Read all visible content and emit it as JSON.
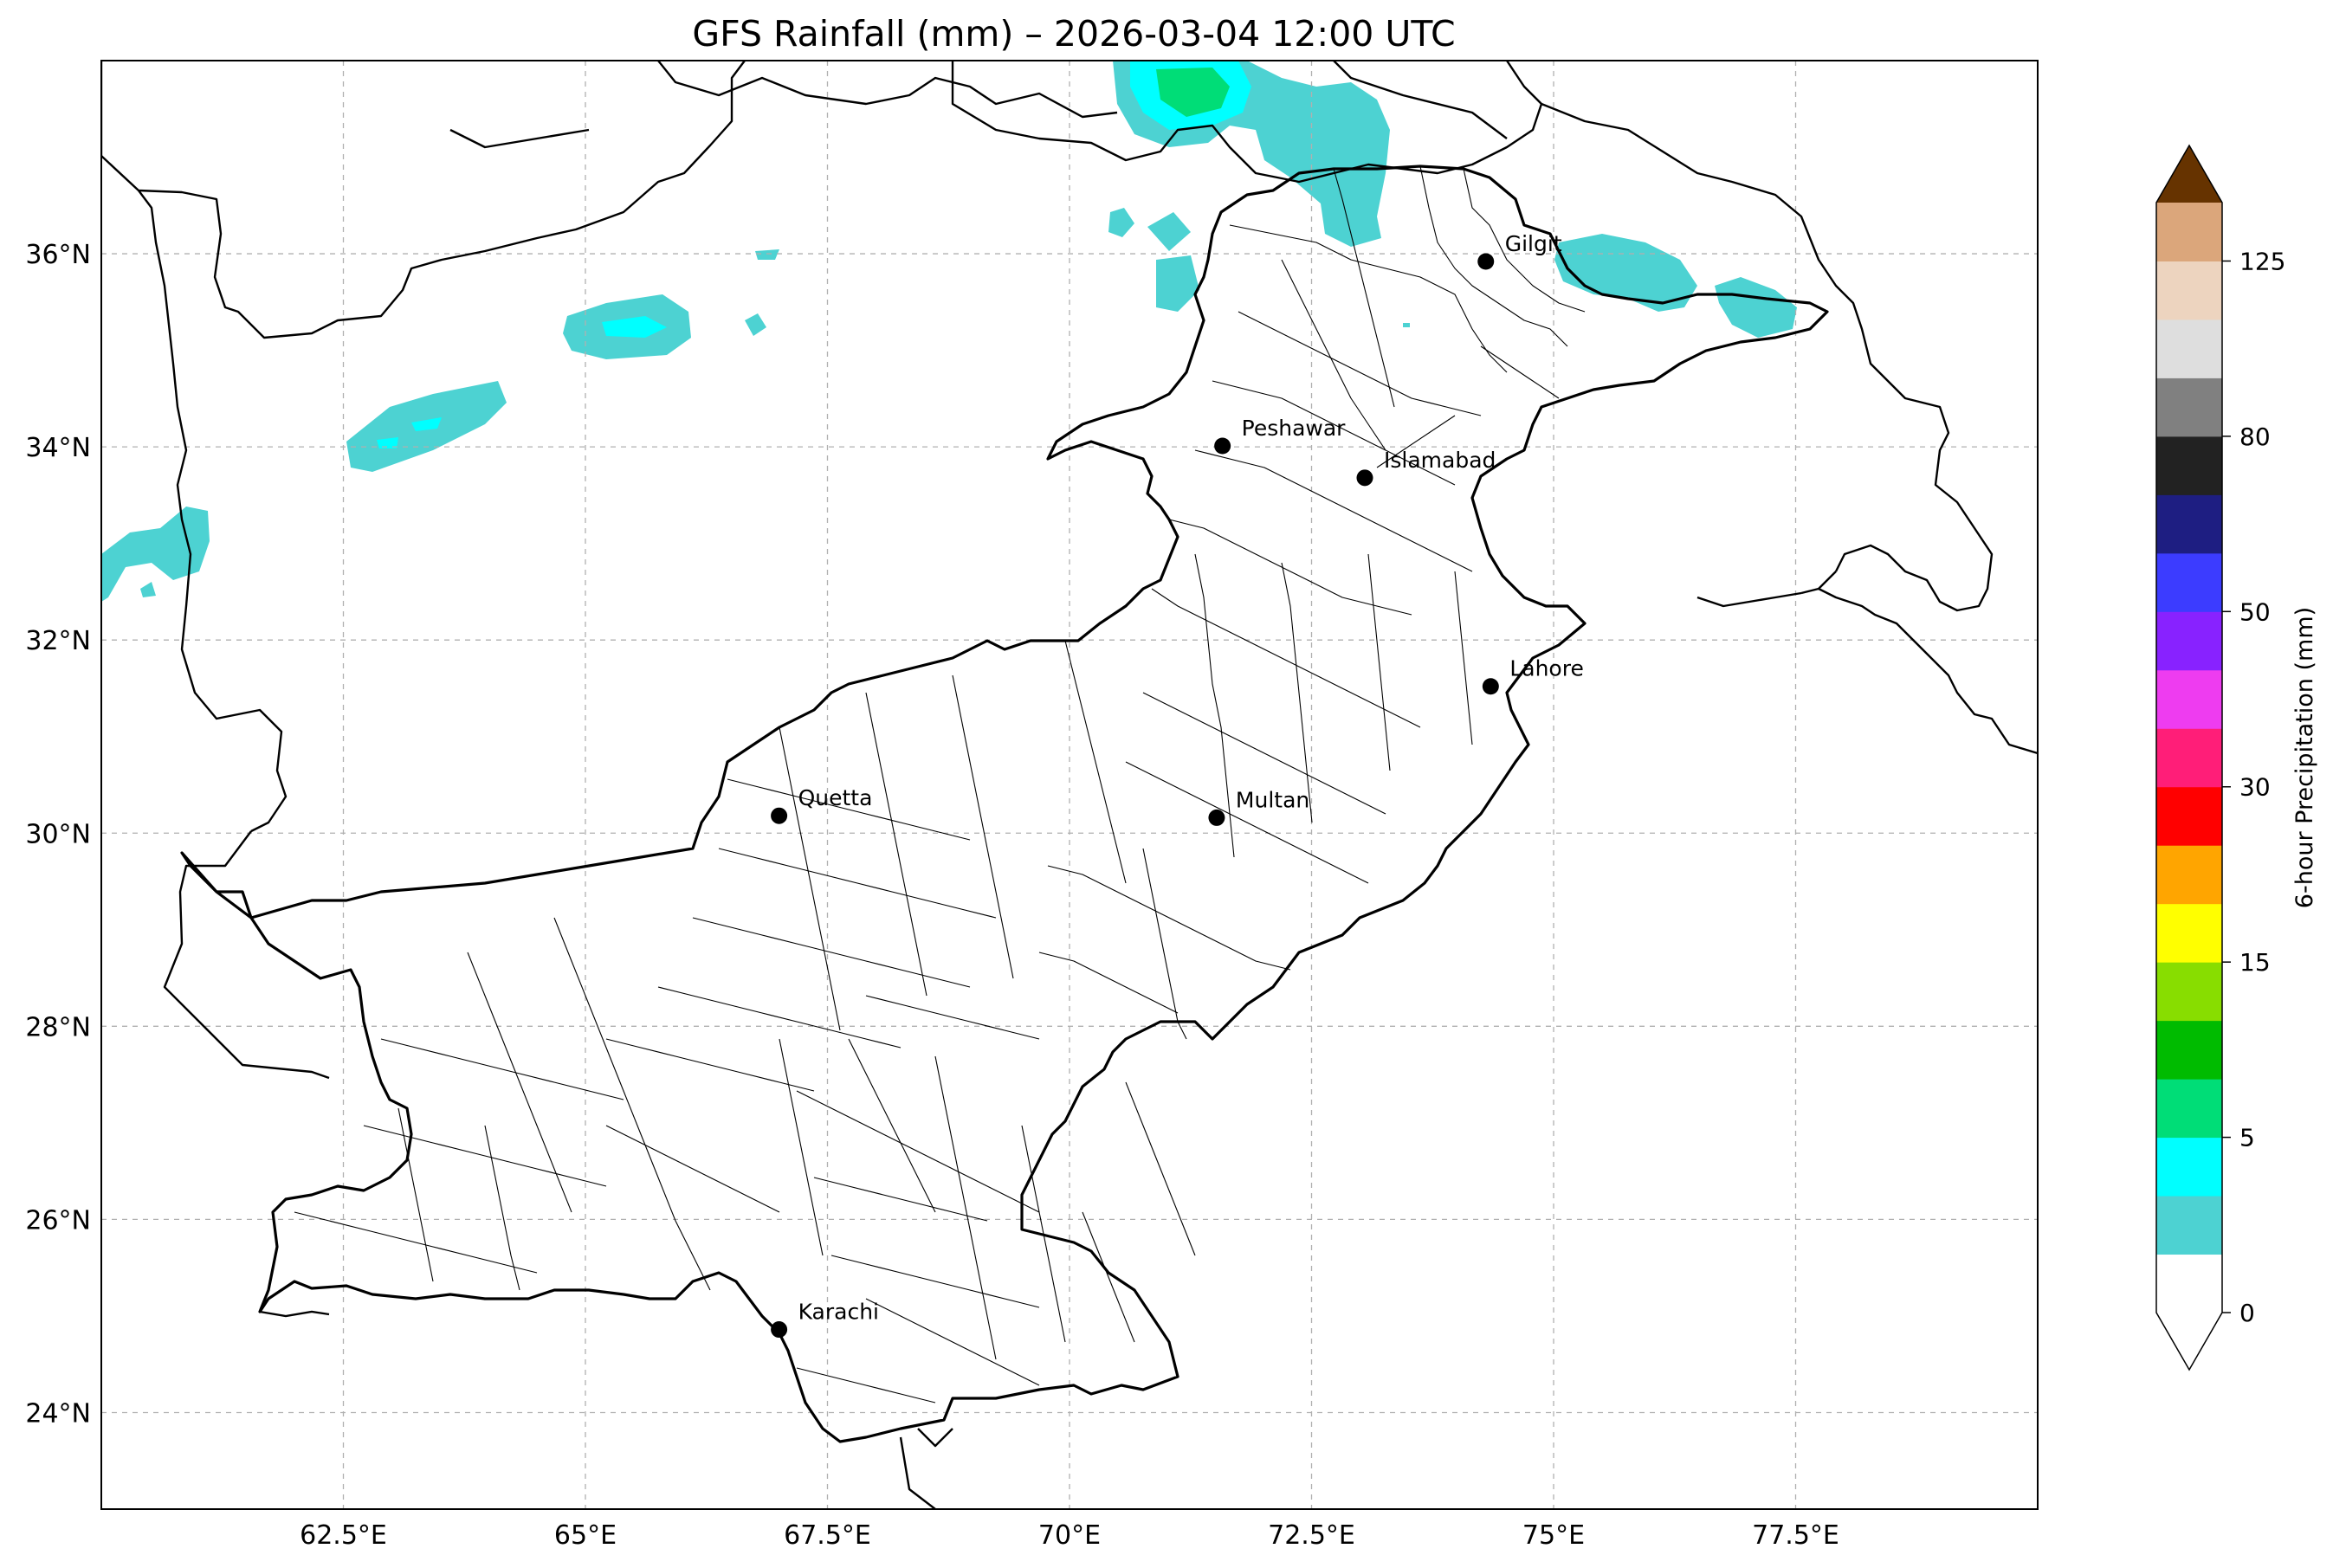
{
  "title": "GFS Rainfall (mm) – 2026-03-04 12:00 UTC",
  "map": {
    "lon_range": [
      60.0,
      80.0
    ],
    "lat_range": [
      23.0,
      38.0
    ],
    "lon_ticks": [
      {
        "lon": 62.5,
        "label": "62.5°E"
      },
      {
        "lon": 65.0,
        "label": "65°E"
      },
      {
        "lon": 67.5,
        "label": "67.5°E"
      },
      {
        "lon": 70.0,
        "label": "70°E"
      },
      {
        "lon": 72.5,
        "label": "72.5°E"
      },
      {
        "lon": 75.0,
        "label": "75°E"
      },
      {
        "lon": 77.5,
        "label": "77.5°E"
      }
    ],
    "lat_ticks": [
      {
        "lat": 24,
        "label": "24°N"
      },
      {
        "lat": 26,
        "label": "26°N"
      },
      {
        "lat": 28,
        "label": "28°N"
      },
      {
        "lat": 30,
        "label": "30°N"
      },
      {
        "lat": 32,
        "label": "32°N"
      },
      {
        "lat": 34,
        "label": "34°N"
      },
      {
        "lat": 36,
        "label": "36°N"
      }
    ],
    "gridlines": true
  },
  "cities": [
    {
      "name": "Gilgit",
      "lon": 74.3,
      "lat": 35.92
    },
    {
      "name": "Peshawar",
      "lon": 71.58,
      "lat": 34.01
    },
    {
      "name": "Islamabad",
      "lon": 73.05,
      "lat": 33.68
    },
    {
      "name": "Lahore",
      "lon": 74.35,
      "lat": 31.52
    },
    {
      "name": "Quetta",
      "lon": 67.0,
      "lat": 30.18
    },
    {
      "name": "Multan",
      "lon": 71.52,
      "lat": 30.16
    },
    {
      "name": "Karachi",
      "lon": 67.0,
      "lat": 24.86
    }
  ],
  "colorbar": {
    "label": "6-hour Precipitation (mm)",
    "colors": [
      "#ffffff",
      "#4dd2d2",
      "#00ffff",
      "#00dd77",
      "#00bb00",
      "#88dd00",
      "#ffff00",
      "#ffa500",
      "#ff0000",
      "#ff1e78",
      "#ee3cf0",
      "#8822ff",
      "#3c3cff",
      "#1e1e82",
      "#222222",
      "#808080",
      "#dedede",
      "#edd4bf",
      "#dba67b"
    ],
    "extend_min_color": "#ffffff",
    "extend_max_color": "#663300",
    "ticks": [
      {
        "index": 0,
        "label": "0"
      },
      {
        "index": 3,
        "label": "5"
      },
      {
        "index": 6,
        "label": "15"
      },
      {
        "index": 9,
        "label": "30"
      },
      {
        "index": 12,
        "label": "50"
      },
      {
        "index": 15,
        "label": "80"
      },
      {
        "index": 18,
        "label": "125"
      }
    ]
  }
}
